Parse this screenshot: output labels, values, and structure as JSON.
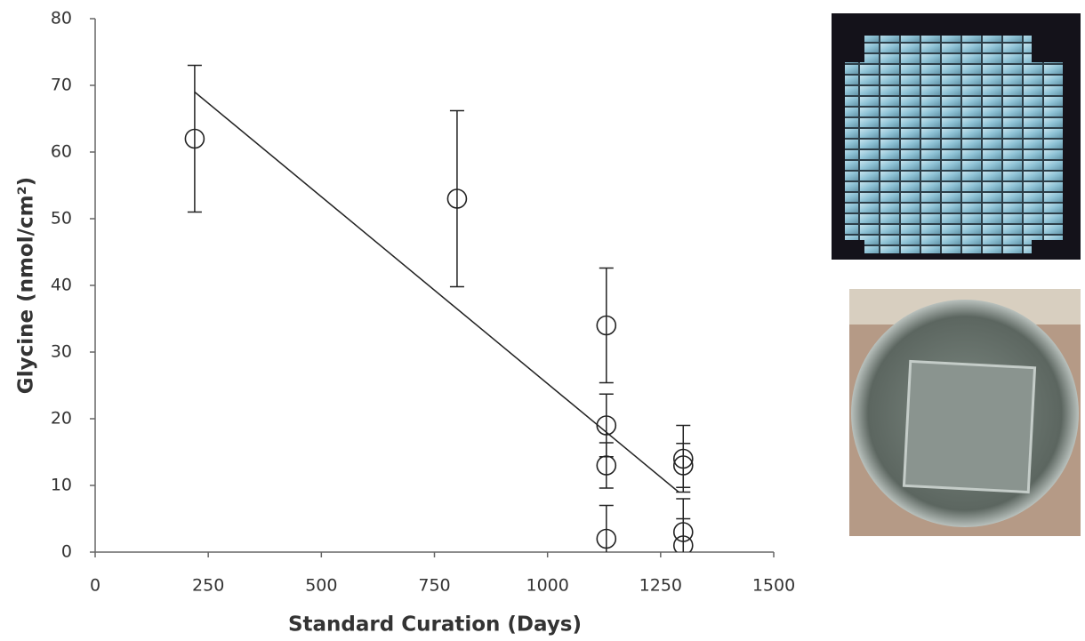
{
  "chart_data": {
    "type": "scatter",
    "xlabel": "Standard Curation (Days)",
    "ylabel": "Glycine (nmol/cm²)",
    "x": [
      220,
      800,
      1130,
      1130,
      1130,
      1130,
      1300,
      1300,
      1300,
      1300
    ],
    "values": [
      62,
      53,
      34,
      19,
      13,
      2,
      14,
      13,
      3,
      1
    ],
    "errors": [
      11,
      13.2,
      8.6,
      4.7,
      3.4,
      5,
      5,
      3.3,
      5,
      4
    ],
    "color": "#222222",
    "trendline": {
      "x": [
        220,
        1290
      ],
      "y": [
        69,
        9
      ]
    },
    "xlim": [
      0,
      1500
    ],
    "xticks": [
      0,
      250,
      500,
      750,
      1000,
      1250,
      1500
    ],
    "ylim": [
      0,
      80
    ],
    "yticks": [
      0,
      10,
      20,
      30,
      40,
      50,
      60,
      70,
      80
    ]
  }
}
